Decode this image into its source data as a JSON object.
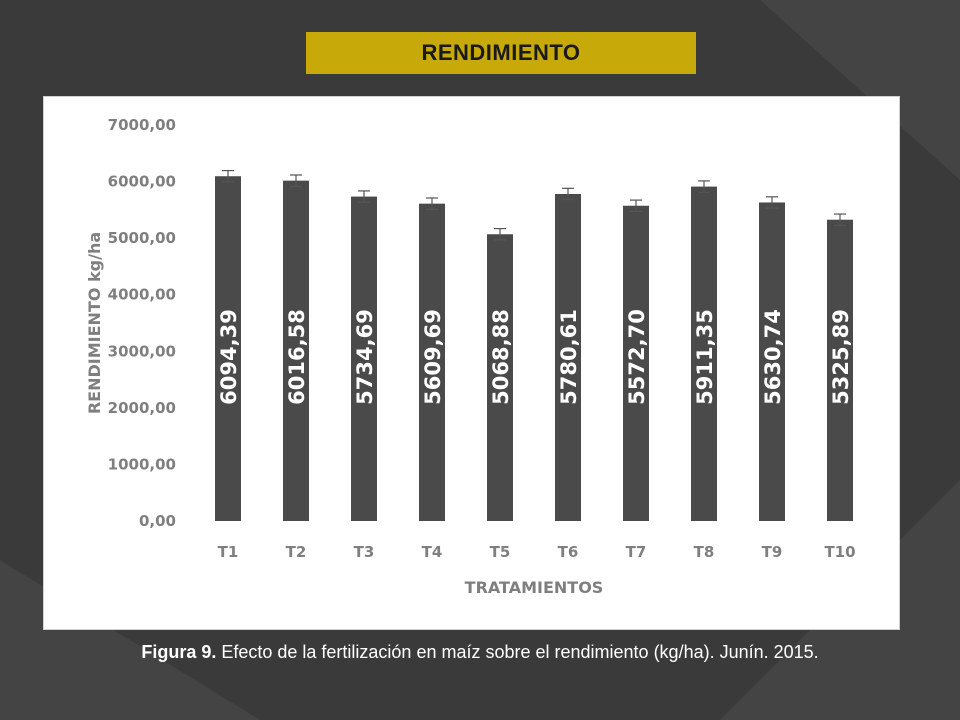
{
  "title": "RENDIMIENTO",
  "caption": {
    "label": "Figura 9.",
    "text": " Efecto de la fertilización en maíz sobre el rendimiento (kg/ha). Junín. 2015."
  },
  "colors": {
    "background": "#3a3a3a",
    "title_box": "#c8a90a",
    "bar": "#4a4a4a",
    "axis_text": "#7f7f7f",
    "bar_label": "#ffffff"
  },
  "chart_data": {
    "type": "bar",
    "categories": [
      "T1",
      "T2",
      "T3",
      "T4",
      "T5",
      "T6",
      "T7",
      "T8",
      "T9",
      "T10"
    ],
    "values": [
      6094.39,
      6016.58,
      5734.69,
      5609.69,
      5068.88,
      5780.61,
      5572.7,
      5911.35,
      5630.74,
      5325.89
    ],
    "value_labels": [
      "6094,39",
      "6016,58",
      "5734,69",
      "5609,69",
      "5068,88",
      "5780,61",
      "5572,70",
      "5911,35",
      "5630,74",
      "5325,89"
    ],
    "error": [
      100,
      100,
      100,
      100,
      100,
      100,
      100,
      100,
      100,
      100
    ],
    "ylim": [
      0,
      7000
    ],
    "yticks": [
      0,
      1000,
      2000,
      3000,
      4000,
      5000,
      6000,
      7000
    ],
    "ytick_labels": [
      "0,00",
      "1000,00",
      "2000,00",
      "3000,00",
      "4000,00",
      "5000,00",
      "6000,00",
      "7000,00"
    ],
    "xlabel": "TRATAMIENTOS",
    "ylabel": "RENDIMIENTO kg/ha",
    "grid": false,
    "legend": "none"
  }
}
